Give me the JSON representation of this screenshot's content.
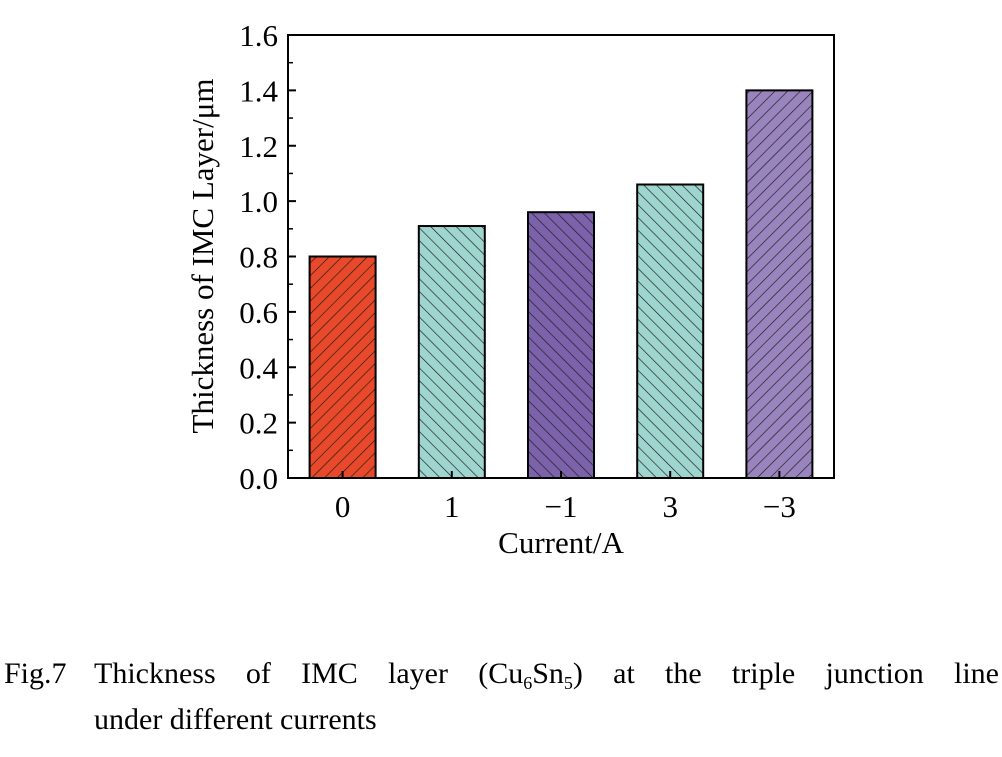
{
  "chart_data": {
    "type": "bar",
    "categories": [
      "0",
      "1",
      "−1",
      "3",
      "−3"
    ],
    "values": [
      0.8,
      0.91,
      0.96,
      1.06,
      1.4
    ],
    "xlabel": "Current/A",
    "ylabel": "Thickness of IMC Layer/μm",
    "ylim": [
      0.0,
      1.6
    ],
    "yticks": [
      "0.0",
      "0.2",
      "0.4",
      "0.6",
      "0.8",
      "1.0",
      "1.2",
      "1.4",
      "1.6"
    ],
    "grid": false,
    "bar_colors": [
      "#E8492A",
      "#9ED5CF",
      "#7B62AA",
      "#9ED5CF",
      "#9A84BE"
    ],
    "hatch": "diagonal"
  },
  "caption": {
    "label": "Fig.7",
    "line1_pre": "Thickness of IMC layer (Cu",
    "sub1": "6",
    "mid": "Sn",
    "sub2": "5",
    "line1_post": ") at the triple junction line",
    "line2": "under different currents"
  }
}
